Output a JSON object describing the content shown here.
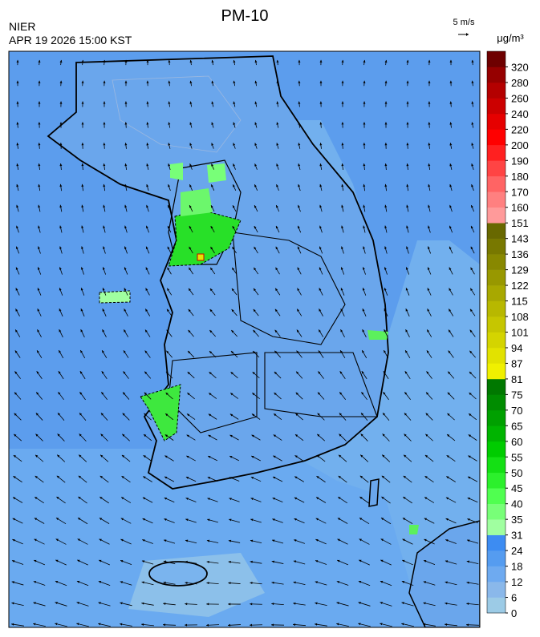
{
  "header": {
    "title": "PM-10",
    "agency": "NIER",
    "timestamp": "APR 19 2026 15:00 KST",
    "wind_scale": "5 m/s"
  },
  "legend": {
    "unit": "μg/m³",
    "ticks": [
      0,
      6,
      12,
      18,
      24,
      31,
      35,
      40,
      45,
      50,
      55,
      60,
      65,
      70,
      75,
      81,
      87,
      94,
      101,
      108,
      115,
      122,
      129,
      136,
      143,
      151,
      160,
      170,
      180,
      190,
      200,
      220,
      240,
      260,
      280,
      320
    ],
    "colors": [
      "#9ccbe6",
      "#8ab8ea",
      "#6eaaf0",
      "#559cf0",
      "#3d8cf2",
      "#a0ffa0",
      "#78ff78",
      "#50ff50",
      "#2cf02c",
      "#14e014",
      "#00cc00",
      "#00b400",
      "#00a000",
      "#008c00",
      "#007800",
      "#f0f000",
      "#e2e200",
      "#d4d400",
      "#c6c600",
      "#b8b800",
      "#a8a800",
      "#989800",
      "#888800",
      "#787800",
      "#686800",
      "#ff9a9a",
      "#ff8080",
      "#ff6464",
      "#ff4444",
      "#ff2020",
      "#ff0000",
      "#e60000",
      "#cc0000",
      "#b40000",
      "#960000",
      "#6e0000"
    ]
  }
}
